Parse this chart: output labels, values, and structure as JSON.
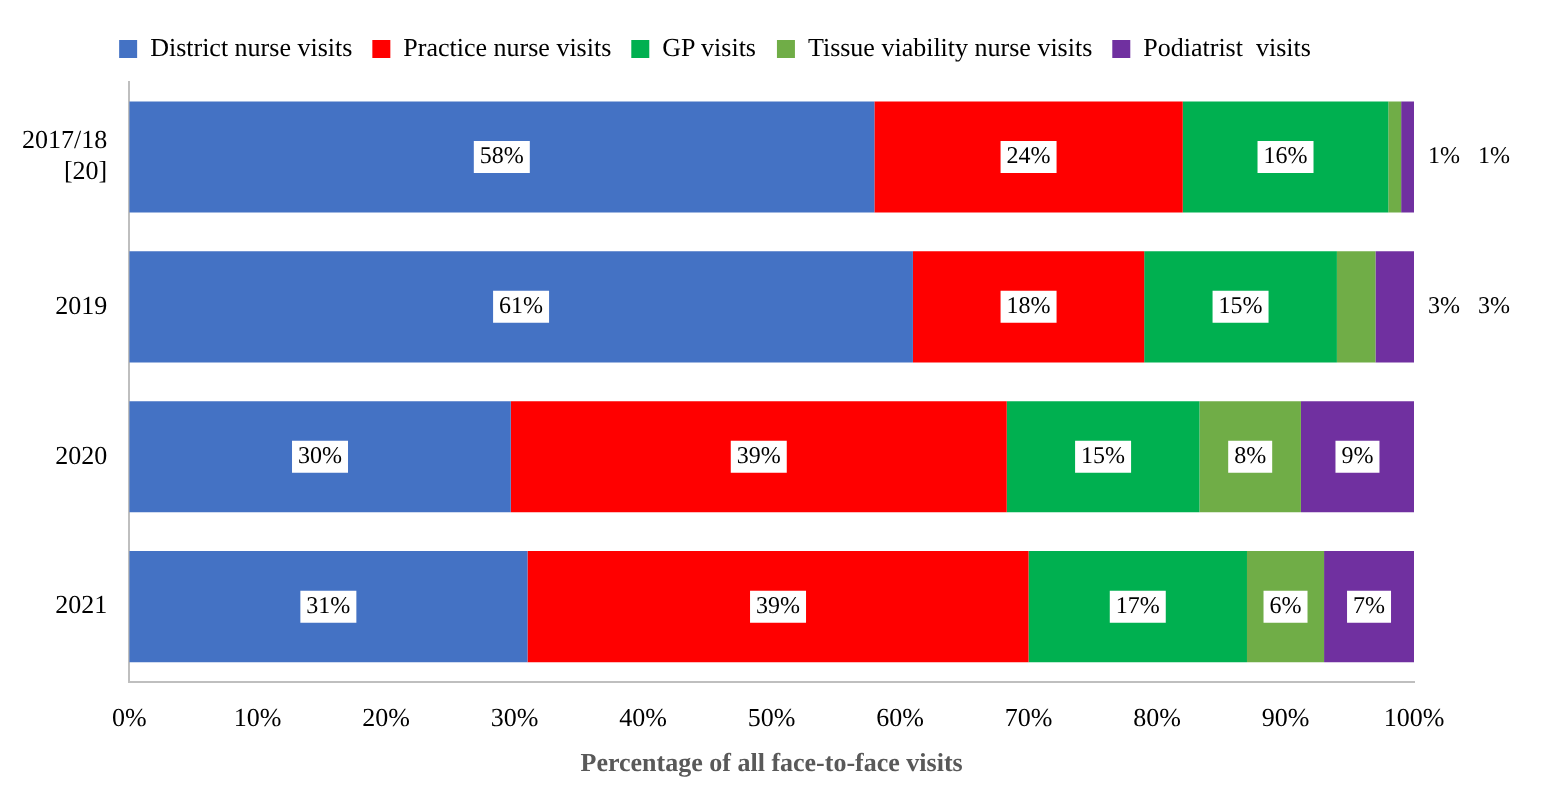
{
  "chart_data": {
    "type": "bar",
    "orientation": "horizontal",
    "stacked": true,
    "legend": "top",
    "xlabel": "Percentage of all face-to-face visits",
    "categories": [
      "2017/18 [20]",
      "2019",
      "2020",
      "2021"
    ],
    "series": [
      {
        "name": "District nurse visits",
        "color": "#4472c4",
        "values": [
          58,
          61,
          29.7,
          31
        ],
        "value_labels": [
          "58%",
          "61%",
          "30%",
          "31%"
        ]
      },
      {
        "name": "Practice nurse visits",
        "color": "#ff0000",
        "values": [
          24,
          18,
          38.6,
          39
        ],
        "value_labels": [
          "24%",
          "18%",
          "39%",
          "39%"
        ]
      },
      {
        "name": "GP visits",
        "color": "#00b050",
        "values": [
          16,
          15,
          15,
          17
        ],
        "value_labels": [
          "16%",
          "15%",
          "15%",
          "17%"
        ]
      },
      {
        "name": "Tissue viability nurse visits",
        "color": "#70ad47",
        "values": [
          1,
          3,
          7.9,
          6
        ],
        "value_labels": [
          "1%",
          "3%",
          "8%",
          "6%"
        ]
      },
      {
        "name": "Podiatrist  visits",
        "color": "#7030a0",
        "values": [
          1,
          3,
          8.8,
          7
        ],
        "value_labels": [
          "1%",
          "3%",
          "9%",
          "7%"
        ]
      }
    ],
    "xlim": [
      0,
      100
    ],
    "xticks": [
      {
        "value": 0,
        "label": "0%"
      },
      {
        "value": 10,
        "label": "10%"
      },
      {
        "value": 20,
        "label": "20%"
      },
      {
        "value": 30,
        "label": "30%"
      },
      {
        "value": 40,
        "label": "40%"
      },
      {
        "value": 50,
        "label": "50%"
      },
      {
        "value": 60,
        "label": "60%"
      },
      {
        "value": 70,
        "label": "70%"
      },
      {
        "value": 80,
        "label": "80%"
      },
      {
        "value": 90,
        "label": "90%"
      },
      {
        "value": 100,
        "label": "100%"
      }
    ]
  }
}
